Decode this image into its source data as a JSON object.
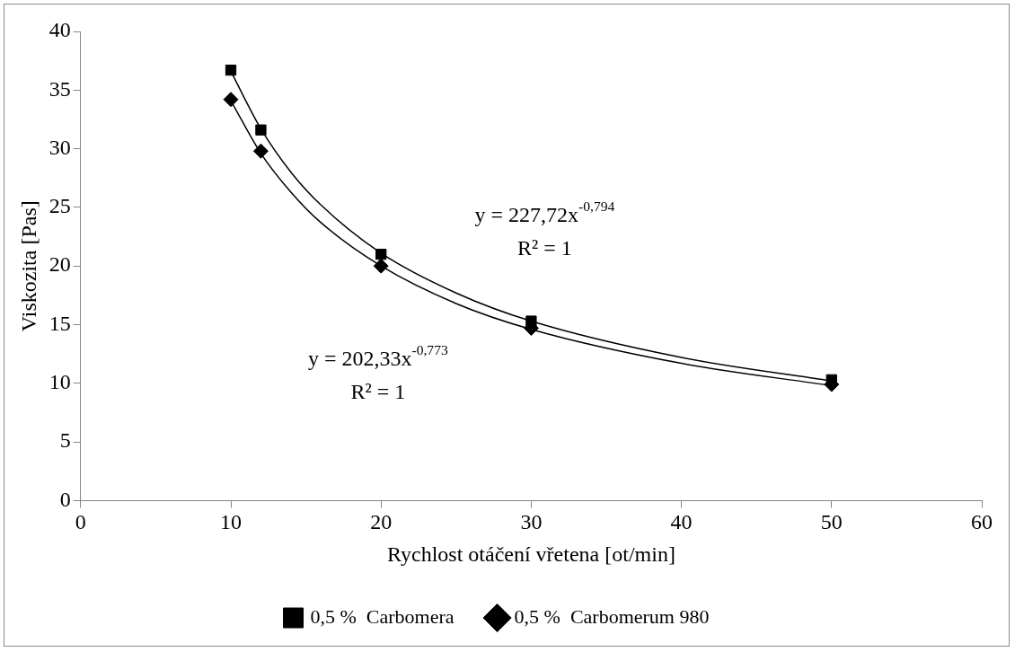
{
  "chart_data": {
    "type": "scatter",
    "xlabel": "Rychlost otáčení vřetena [ot/min]",
    "ylabel": "Viskozita [Pas]",
    "xlim": [
      0,
      60
    ],
    "xticks": [
      0,
      10,
      20,
      30,
      40,
      50,
      60
    ],
    "ylim": [
      0,
      40
    ],
    "yticks": [
      0,
      5,
      10,
      15,
      20,
      25,
      30,
      35,
      40
    ],
    "grid": false,
    "legend": "bottom",
    "series": [
      {
        "name": "0,5 %  Carbomera",
        "color": "#000000",
        "marker": "square",
        "x": [
          10,
          12,
          20,
          30,
          50
        ],
        "values": [
          36.7,
          31.6,
          21.0,
          15.3,
          10.3
        ]
      },
      {
        "name": "0,5 %  Carbomerum 980",
        "color": "#000000",
        "marker": "diamond",
        "x": [
          10,
          12,
          20,
          30,
          50
        ],
        "values": [
          34.2,
          29.8,
          20.0,
          14.7,
          9.9
        ]
      },
      {
        "type": "line",
        "color": "#000000",
        "marker": "none",
        "x": [
          10,
          12,
          14,
          16,
          20,
          25,
          30,
          40,
          50
        ],
        "values": [
          36.6,
          31.7,
          28.0,
          25.2,
          21.1,
          17.7,
          15.3,
          12.2,
          10.2
        ]
      },
      {
        "type": "line",
        "color": "#000000",
        "marker": "none",
        "x": [
          10,
          12,
          14,
          16,
          20,
          25,
          30,
          40,
          50
        ],
        "values": [
          34.1,
          29.6,
          26.3,
          23.7,
          20.0,
          16.8,
          14.6,
          11.7,
          9.8
        ]
      }
    ],
    "annotations": [
      "y = 227,72x$^{-0,794}$",
      "R² = 1",
      "y = 202,33x$^{-0,773}$",
      "R² = 1"
    ]
  }
}
